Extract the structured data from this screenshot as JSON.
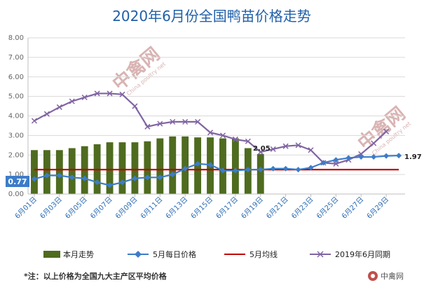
{
  "chart_data": {
    "type": "bar+line",
    "title": "2020年6月份全国鸭苗价格走势",
    "ylim": [
      0,
      8
    ],
    "yticks": [
      "0.00",
      "1.00",
      "2.00",
      "3.00",
      "4.00",
      "5.00",
      "6.00",
      "7.00",
      "8.00"
    ],
    "x_labels": [
      "6月01日",
      "6月03日",
      "6月05日",
      "6月07日",
      "6月09日",
      "6月11日",
      "6月13日",
      "6月15日",
      "6月17日",
      "6月19日",
      "6月21日",
      "6月23日",
      "6月25日",
      "6月27日",
      "6月29日"
    ],
    "days": 30,
    "series": [
      {
        "name": "本月走势",
        "type": "bar",
        "color": "#4e6b1f",
        "values": [
          2.25,
          2.25,
          2.25,
          2.35,
          2.45,
          2.55,
          2.65,
          2.65,
          2.65,
          2.7,
          2.85,
          2.95,
          2.95,
          2.9,
          2.9,
          2.85,
          2.85,
          2.35,
          2.05
        ]
      },
      {
        "name": "5月每日价格",
        "type": "line",
        "color": "#3d7cc9",
        "values": [
          0.77,
          0.95,
          0.95,
          0.85,
          0.8,
          0.6,
          0.45,
          0.6,
          0.8,
          0.85,
          0.85,
          1.0,
          1.3,
          1.55,
          1.5,
          1.2,
          1.2,
          1.25,
          1.25,
          1.3,
          1.3,
          1.25,
          1.35,
          1.6,
          1.75,
          1.85,
          1.9,
          1.9,
          1.95,
          1.97
        ]
      },
      {
        "name": "5月均线",
        "type": "line",
        "color": "#c00000",
        "values": [
          1.25,
          1.25,
          1.25,
          1.25,
          1.25,
          1.25,
          1.25,
          1.25,
          1.25,
          1.25,
          1.25,
          1.25,
          1.25,
          1.25,
          1.25,
          1.25,
          1.25,
          1.25,
          1.25,
          1.25,
          1.25,
          1.25,
          1.25,
          1.25,
          1.25,
          1.25,
          1.25,
          1.25,
          1.25,
          1.25
        ]
      },
      {
        "name": "2019年6月同期",
        "type": "line",
        "color": "#8064a2",
        "values": [
          3.75,
          4.1,
          4.45,
          4.75,
          4.95,
          5.15,
          5.15,
          5.1,
          4.5,
          3.45,
          3.6,
          3.7,
          3.7,
          3.7,
          3.15,
          3.0,
          2.8,
          2.7,
          2.15,
          2.3,
          2.45,
          2.5,
          2.25,
          1.6,
          1.55,
          1.75,
          2.05,
          2.6,
          3.2
        ]
      }
    ],
    "annotations": {
      "start_value": "0.77",
      "bar_end_value": "2.05",
      "line_end_value": "1.97"
    },
    "note": "*注：以上价格为全国九大主产区平均价格"
  },
  "watermark": {
    "text": "中禽网",
    "sub": "China poultry net"
  },
  "logo": {
    "text": "中禽网"
  },
  "colors": {
    "title": "#1f5fa8",
    "axis": "#bfbfbf",
    "start_badge": "#3d7cc9"
  }
}
